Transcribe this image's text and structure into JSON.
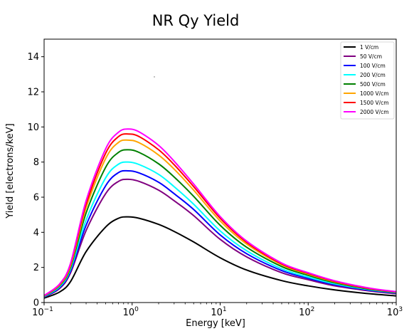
{
  "chart_data": {
    "type": "line",
    "title": "NR Qy Yield",
    "xlabel": "Energy [keV]",
    "ylabel": "Yield [electrons/keV]",
    "xscale": "log",
    "xlim": [
      0.1,
      1000
    ],
    "ylim": [
      0,
      15
    ],
    "x_ticks": [
      {
        "base": "10",
        "exp": "−1"
      },
      {
        "base": "10",
        "exp": "0"
      },
      {
        "base": "10",
        "exp": "1"
      },
      {
        "base": "10",
        "exp": "2"
      },
      {
        "base": "10",
        "exp": "3"
      }
    ],
    "y_ticks": [
      0,
      2,
      4,
      6,
      8,
      10,
      12,
      14
    ],
    "grid": false,
    "legend_position": "upper right",
    "x": [
      0.1,
      0.15,
      0.2,
      0.3,
      0.5,
      0.7,
      0.9,
      1.2,
      2,
      3,
      5,
      10,
      20,
      50,
      100,
      200,
      500,
      1000
    ],
    "series": [
      {
        "name": "1 V/cm",
        "color": "#000000",
        "values": [
          0.25,
          0.6,
          1.2,
          2.9,
          4.3,
          4.8,
          4.88,
          4.8,
          4.45,
          4.05,
          3.45,
          2.55,
          1.85,
          1.25,
          0.95,
          0.72,
          0.5,
          0.38
        ]
      },
      {
        "name": "50 V/cm",
        "color": "#800080",
        "values": [
          0.3,
          0.8,
          1.7,
          4.1,
          6.2,
          6.9,
          7.02,
          6.9,
          6.4,
          5.8,
          4.95,
          3.6,
          2.6,
          1.7,
          1.3,
          0.95,
          0.66,
          0.5
        ]
      },
      {
        "name": "100 V/cm",
        "color": "#0000ff",
        "values": [
          0.32,
          0.85,
          1.8,
          4.4,
          6.65,
          7.4,
          7.5,
          7.38,
          6.85,
          6.2,
          5.3,
          3.85,
          2.78,
          1.82,
          1.38,
          1.02,
          0.7,
          0.54
        ]
      },
      {
        "name": "200 V/cm",
        "color": "#00ffff",
        "values": [
          0.34,
          0.9,
          1.9,
          4.7,
          7.1,
          7.88,
          8.0,
          7.86,
          7.3,
          6.6,
          5.6,
          4.08,
          2.95,
          1.92,
          1.45,
          1.07,
          0.73,
          0.56
        ]
      },
      {
        "name": "500 V/cm",
        "color": "#008000",
        "values": [
          0.36,
          0.96,
          2.0,
          5.1,
          7.7,
          8.55,
          8.7,
          8.55,
          7.9,
          7.15,
          6.05,
          4.4,
          3.15,
          2.05,
          1.55,
          1.13,
          0.76,
          0.58
        ]
      },
      {
        "name": "1000 V/cm",
        "color": "#ffa500",
        "values": [
          0.38,
          1.0,
          2.1,
          5.4,
          8.2,
          9.12,
          9.25,
          9.1,
          8.4,
          7.6,
          6.4,
          4.65,
          3.33,
          2.15,
          1.62,
          1.18,
          0.79,
          0.6
        ]
      },
      {
        "name": "1500 V/cm",
        "color": "#ff0000",
        "values": [
          0.39,
          1.04,
          2.2,
          5.6,
          8.5,
          9.45,
          9.6,
          9.45,
          8.7,
          7.85,
          6.6,
          4.8,
          3.43,
          2.2,
          1.66,
          1.21,
          0.8,
          0.61
        ]
      },
      {
        "name": "2000 V/cm",
        "color": "#ff00ff",
        "values": [
          0.4,
          1.06,
          2.25,
          5.8,
          8.75,
          9.7,
          9.88,
          9.72,
          8.95,
          8.05,
          6.75,
          4.9,
          3.5,
          2.25,
          1.7,
          1.24,
          0.82,
          0.62
        ]
      }
    ]
  }
}
